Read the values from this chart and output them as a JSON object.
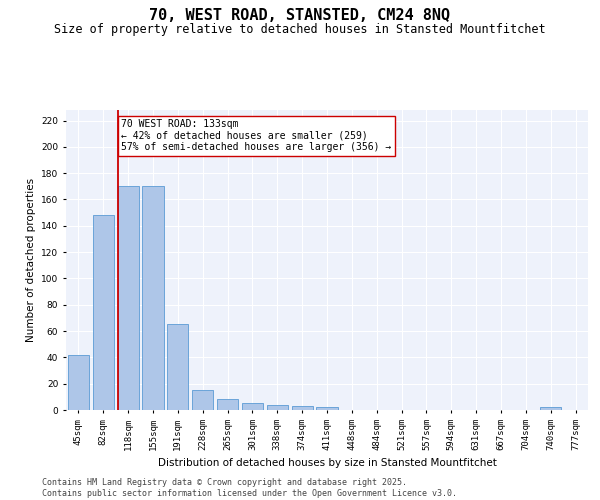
{
  "title": "70, WEST ROAD, STANSTED, CM24 8NQ",
  "subtitle": "Size of property relative to detached houses in Stansted Mountfitchet",
  "xlabel": "Distribution of detached houses by size in Stansted Mountfitchet",
  "ylabel": "Number of detached properties",
  "categories": [
    "45sqm",
    "82sqm",
    "118sqm",
    "155sqm",
    "191sqm",
    "228sqm",
    "265sqm",
    "301sqm",
    "338sqm",
    "374sqm",
    "411sqm",
    "448sqm",
    "484sqm",
    "521sqm",
    "557sqm",
    "594sqm",
    "631sqm",
    "667sqm",
    "704sqm",
    "740sqm",
    "777sqm"
  ],
  "values": [
    42,
    148,
    170,
    170,
    65,
    15,
    8,
    5,
    4,
    3,
    2,
    0,
    0,
    0,
    0,
    0,
    0,
    0,
    0,
    2,
    0
  ],
  "bar_color": "#aec6e8",
  "bar_edge_color": "#5b9bd5",
  "highlight_bar_index": 2,
  "highlight_color": "#cc0000",
  "annotation_title": "70 WEST ROAD: 133sqm",
  "annotation_line1": "← 42% of detached houses are smaller (259)",
  "annotation_line2": "57% of semi-detached houses are larger (356) →",
  "ylim": [
    0,
    228
  ],
  "yticks": [
    0,
    20,
    40,
    60,
    80,
    100,
    120,
    140,
    160,
    180,
    200,
    220
  ],
  "bg_color": "#eef2fb",
  "footer": "Contains HM Land Registry data © Crown copyright and database right 2025.\nContains public sector information licensed under the Open Government Licence v3.0.",
  "title_fontsize": 11,
  "subtitle_fontsize": 8.5,
  "xlabel_fontsize": 7.5,
  "ylabel_fontsize": 7.5,
  "tick_fontsize": 6.5,
  "annotation_fontsize": 7,
  "footer_fontsize": 6
}
